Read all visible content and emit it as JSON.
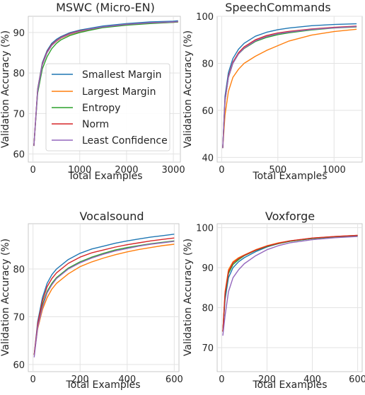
{
  "series_colors": {
    "Smallest Margin": "#1f77b4",
    "Largest Margin": "#ff7f0e",
    "Entropy": "#2ca02c",
    "Norm": "#d62728",
    "Least Confidence": "#9467bd"
  },
  "chart_data": [
    {
      "type": "line",
      "title": "MSWC (Micro-EN)",
      "xlabel": "Total Examples",
      "ylabel": "Validation Accuracy (%)",
      "xlim": [
        -100,
        3150
      ],
      "ylim": [
        58,
        94
      ],
      "xticks": [
        0,
        1000,
        2000,
        3000
      ],
      "yticks": [
        60,
        70,
        80,
        90
      ],
      "grid": true,
      "legend": {
        "placement": "lower-right",
        "entries": [
          "Smallest Margin",
          "Largest Margin",
          "Entropy",
          "Norm",
          "Least Confidence"
        ]
      },
      "series": [
        {
          "name": "Smallest Margin",
          "x": [
            20,
            100,
            200,
            300,
            400,
            500,
            600,
            800,
            1000,
            1200,
            1500,
            2000,
            2500,
            3000,
            3100
          ],
          "y": [
            62,
            76,
            82.5,
            85.5,
            87.3,
            88.3,
            89,
            90,
            90.6,
            91,
            91.6,
            92.2,
            92.6,
            92.8,
            92.9
          ]
        },
        {
          "name": "Largest Margin",
          "x": [
            20,
            100,
            200,
            300,
            400,
            500,
            600,
            800,
            1000,
            1200,
            1500,
            2000,
            2500,
            3000,
            3100
          ],
          "y": [
            62,
            75.5,
            82,
            85,
            86.8,
            87.8,
            88.6,
            89.6,
            90.2,
            90.7,
            91.3,
            92,
            92.3,
            92.5,
            92.6
          ]
        },
        {
          "name": "Entropy",
          "x": [
            20,
            100,
            200,
            300,
            400,
            500,
            600,
            800,
            1000,
            1200,
            1500,
            2000,
            2500,
            3000,
            3100
          ],
          "y": [
            62,
            75,
            81,
            84,
            86,
            87.3,
            88.2,
            89.3,
            90,
            90.5,
            91.2,
            91.8,
            92.2,
            92.5,
            92.6
          ]
        },
        {
          "name": "Norm",
          "x": [
            20,
            100,
            200,
            300,
            400,
            500,
            600,
            800,
            1000,
            1200,
            1500,
            2000,
            2500,
            3000,
            3100
          ],
          "y": [
            62,
            75.8,
            82.2,
            85.2,
            87,
            88,
            88.8,
            89.8,
            90.4,
            90.8,
            91.4,
            92,
            92.4,
            92.6,
            92.7
          ]
        },
        {
          "name": "Least Confidence",
          "x": [
            20,
            100,
            200,
            300,
            400,
            500,
            600,
            800,
            1000,
            1200,
            1500,
            2000,
            2500,
            3000,
            3100
          ],
          "y": [
            62,
            75.6,
            82,
            85,
            86.8,
            87.9,
            88.7,
            89.7,
            90.3,
            90.8,
            91.4,
            92,
            92.4,
            92.6,
            92.7
          ]
        }
      ]
    },
    {
      "type": "line",
      "title": "SpeechCommands",
      "xlabel": "Total Examples",
      "ylabel": "Validation Accuracy (%)",
      "xlim": [
        -40,
        1250
      ],
      "ylim": [
        38,
        100
      ],
      "xticks": [
        0,
        500,
        1000
      ],
      "yticks": [
        40,
        60,
        80,
        100
      ],
      "grid": true,
      "series": [
        {
          "name": "Smallest Margin",
          "x": [
            10,
            30,
            60,
            100,
            150,
            200,
            300,
            400,
            500,
            600,
            800,
            1000,
            1200
          ],
          "y": [
            44,
            66,
            76,
            82,
            86,
            88.5,
            91.5,
            93.2,
            94.3,
            95,
            96,
            96.5,
            96.8
          ]
        },
        {
          "name": "Largest Margin",
          "x": [
            10,
            30,
            60,
            100,
            150,
            200,
            300,
            400,
            500,
            600,
            800,
            1000,
            1200
          ],
          "y": [
            44,
            58,
            68,
            74,
            77.5,
            80,
            83,
            85.5,
            87.5,
            89.5,
            92,
            93.5,
            94.5
          ]
        },
        {
          "name": "Entropy",
          "x": [
            10,
            30,
            60,
            100,
            150,
            200,
            300,
            400,
            500,
            600,
            800,
            1000,
            1200
          ],
          "y": [
            44,
            64,
            74,
            80,
            84,
            86.3,
            89.3,
            91,
            92.2,
            93,
            94.2,
            95,
            95.5
          ]
        },
        {
          "name": "Norm",
          "x": [
            10,
            30,
            60,
            100,
            150,
            200,
            300,
            400,
            500,
            600,
            800,
            1000,
            1200
          ],
          "y": [
            44,
            64.5,
            74.5,
            80.5,
            84.5,
            87,
            90,
            91.8,
            92.9,
            93.6,
            94.6,
            95.3,
            95.8
          ]
        },
        {
          "name": "Least Confidence",
          "x": [
            10,
            30,
            60,
            100,
            150,
            200,
            300,
            400,
            500,
            600,
            800,
            1000,
            1200
          ],
          "y": [
            44,
            64,
            74,
            80,
            84,
            86.5,
            89.6,
            91.4,
            92.6,
            93.3,
            94.4,
            95.1,
            95.6
          ]
        }
      ]
    },
    {
      "type": "line",
      "title": "Vocalsound",
      "xlabel": "Total Examples",
      "ylabel": "Validation Accuracy (%)",
      "xlim": [
        -20,
        620
      ],
      "ylim": [
        58.5,
        89.5
      ],
      "xticks": [
        0,
        200,
        400,
        600
      ],
      "yticks": [
        60,
        70,
        80
      ],
      "grid": true,
      "series": [
        {
          "name": "Smallest Margin",
          "x": [
            5,
            20,
            40,
            60,
            80,
            100,
            150,
            200,
            250,
            300,
            350,
            400,
            450,
            500,
            550,
            600
          ],
          "y": [
            62,
            69,
            74,
            77,
            78.8,
            80,
            82,
            83.3,
            84.2,
            84.8,
            85.4,
            85.9,
            86.3,
            86.7,
            87,
            87.3
          ]
        },
        {
          "name": "Largest Margin",
          "x": [
            5,
            20,
            40,
            60,
            80,
            100,
            150,
            200,
            250,
            300,
            350,
            400,
            450,
            500,
            550,
            600
          ],
          "y": [
            62,
            67.5,
            71.5,
            74,
            75.8,
            77,
            79,
            80.5,
            81.5,
            82.3,
            83,
            83.6,
            84.1,
            84.5,
            84.9,
            85.2
          ]
        },
        {
          "name": "Entropy",
          "x": [
            5,
            20,
            40,
            60,
            80,
            100,
            150,
            200,
            250,
            300,
            350,
            400,
            450,
            500,
            550,
            600
          ],
          "y": [
            62,
            68,
            72.5,
            75.3,
            77,
            78.2,
            80.2,
            81.5,
            82.5,
            83.3,
            84,
            84.5,
            84.9,
            85.3,
            85.6,
            85.9
          ]
        },
        {
          "name": "Norm",
          "x": [
            5,
            20,
            40,
            60,
            80,
            100,
            150,
            200,
            250,
            300,
            350,
            400,
            450,
            500,
            550,
            600
          ],
          "y": [
            62,
            68.5,
            73.3,
            76.3,
            78,
            79.2,
            81.2,
            82.5,
            83.4,
            84,
            84.6,
            85.1,
            85.5,
            85.9,
            86.2,
            86.5
          ]
        },
        {
          "name": "Least Confidence",
          "x": [
            5,
            20,
            40,
            60,
            80,
            100,
            150,
            200,
            250,
            300,
            350,
            400,
            450,
            500,
            550,
            600
          ],
          "y": [
            61.5,
            67.8,
            72,
            75,
            76.7,
            78,
            80,
            81.3,
            82.3,
            83.1,
            83.8,
            84.3,
            84.8,
            85.2,
            85.5,
            85.8
          ]
        }
      ]
    },
    {
      "type": "line",
      "title": "Voxforge",
      "xlabel": "Total Examples",
      "ylabel": "Validation Accuracy (%)",
      "xlim": [
        -20,
        620
      ],
      "ylim": [
        64,
        101
      ],
      "xticks": [
        0,
        200,
        400,
        600
      ],
      "yticks": [
        70,
        80,
        90,
        100
      ],
      "grid": true,
      "series": [
        {
          "name": "Smallest Margin",
          "x": [
            5,
            15,
            30,
            50,
            75,
            100,
            150,
            200,
            250,
            300,
            400,
            500,
            600
          ],
          "y": [
            74,
            82,
            87.5,
            90,
            91.5,
            92.5,
            94,
            95.2,
            96,
            96.6,
            97.3,
            97.7,
            98
          ]
        },
        {
          "name": "Largest Margin",
          "x": [
            5,
            15,
            30,
            50,
            75,
            100,
            150,
            200,
            250,
            300,
            400,
            500,
            600
          ],
          "y": [
            74,
            84,
            89.5,
            91.5,
            92.5,
            93.2,
            94.5,
            95.5,
            96.2,
            96.7,
            97.4,
            97.8,
            98.1
          ]
        },
        {
          "name": "Entropy",
          "x": [
            5,
            15,
            30,
            50,
            75,
            100,
            150,
            200,
            250,
            300,
            400,
            500,
            600
          ],
          "y": [
            74,
            83,
            88.5,
            90.8,
            92,
            93,
            94.3,
            95.3,
            96,
            96.6,
            97.3,
            97.7,
            98
          ]
        },
        {
          "name": "Norm",
          "x": [
            5,
            15,
            30,
            50,
            75,
            100,
            150,
            200,
            250,
            300,
            400,
            500,
            600
          ],
          "y": [
            74,
            83.5,
            89,
            91.2,
            92.3,
            93.1,
            94.4,
            95.4,
            96.1,
            96.7,
            97.4,
            97.8,
            98.1
          ]
        },
        {
          "name": "Least Confidence",
          "x": [
            5,
            15,
            30,
            50,
            75,
            100,
            150,
            200,
            250,
            300,
            400,
            500,
            600
          ],
          "y": [
            73,
            78,
            84,
            87.5,
            89.5,
            91,
            93,
            94.5,
            95.5,
            96.2,
            97,
            97.5,
            97.8
          ]
        }
      ]
    }
  ]
}
